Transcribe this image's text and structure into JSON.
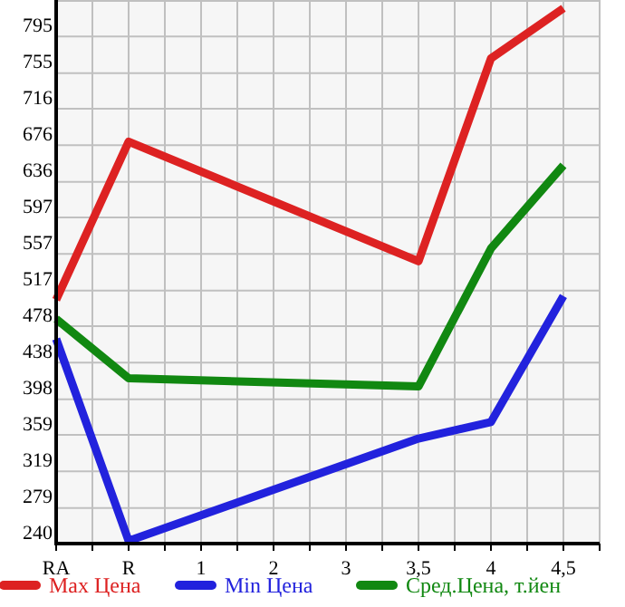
{
  "chart_data": {
    "type": "line",
    "categories": [
      "RA",
      "R",
      "1",
      "2",
      "3",
      "3,5",
      "4",
      "4,5"
    ],
    "series": [
      {
        "name": "Max Цена",
        "color": "#dd2222",
        "values": [
          507,
          680,
          null,
          null,
          null,
          549,
          771,
          826
        ]
      },
      {
        "name": "Min Цена",
        "color": "#2222dd",
        "values": [
          464,
          243,
          null,
          null,
          null,
          355,
          373,
          511
        ]
      },
      {
        "name": "Сред.Цена, т.йен",
        "color": "#118811",
        "values": [
          486,
          421,
          null,
          null,
          null,
          412,
          563,
          654
        ]
      }
    ],
    "ylim": [
      240,
      835
    ],
    "yticks": [
      240,
      279,
      319,
      359,
      398,
      438,
      478,
      517,
      557,
      597,
      636,
      676,
      716,
      755,
      795
    ],
    "grid": true,
    "legend": "bottom",
    "marker": "none"
  }
}
